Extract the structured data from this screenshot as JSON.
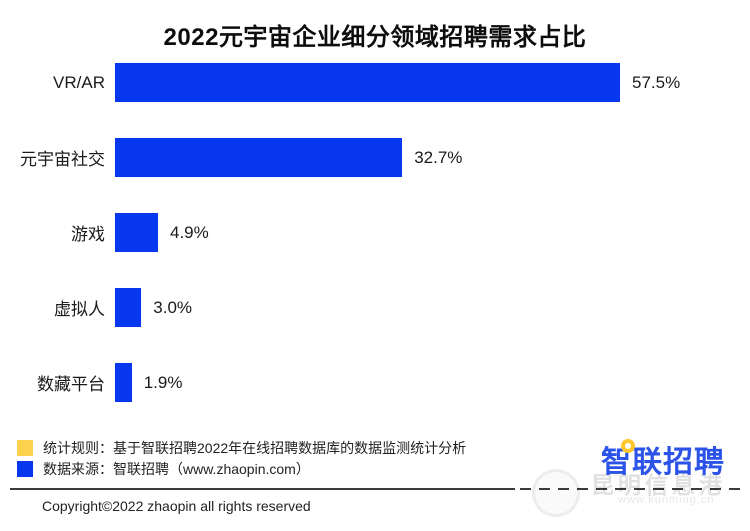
{
  "title": "2022元宇宙企业细分领域招聘需求占比",
  "chart_data": {
    "type": "bar",
    "orientation": "horizontal",
    "title": "2022元宇宙企业细分领域招聘需求占比",
    "categories": [
      "VR/AR",
      "元宇宙社交",
      "游戏",
      "虚拟人",
      "数藏平台"
    ],
    "values": [
      57.5,
      32.7,
      4.9,
      3.0,
      1.9
    ],
    "value_labels": [
      "57.5%",
      "32.7%",
      "4.9%",
      "3.0%",
      "1.9%"
    ],
    "xlabel": "",
    "ylabel": "",
    "xlim": [
      0,
      60
    ],
    "grid": false,
    "bar_color": "#0837f0",
    "legend_position": "bottom-left",
    "value_label_position": "right-of-bar"
  },
  "legend": {
    "items": [
      {
        "color": "#fbd14e",
        "label": "统计规则：基于智联招聘2022年在线招聘数据库的数据监测统计分析"
      },
      {
        "color": "#0837f0",
        "label": "数据来源：智联招聘（www.zhaopin.com）"
      }
    ]
  },
  "footer": {
    "copyright": "Copyright©2022 zhaopin all rights reserved"
  },
  "logo": {
    "text": "智联招聘",
    "text_color": "#2b53e7",
    "dot_color": "#ffc62e"
  },
  "watermark": {
    "text": "昆明信息港",
    "url": "www.kunming.cn"
  }
}
